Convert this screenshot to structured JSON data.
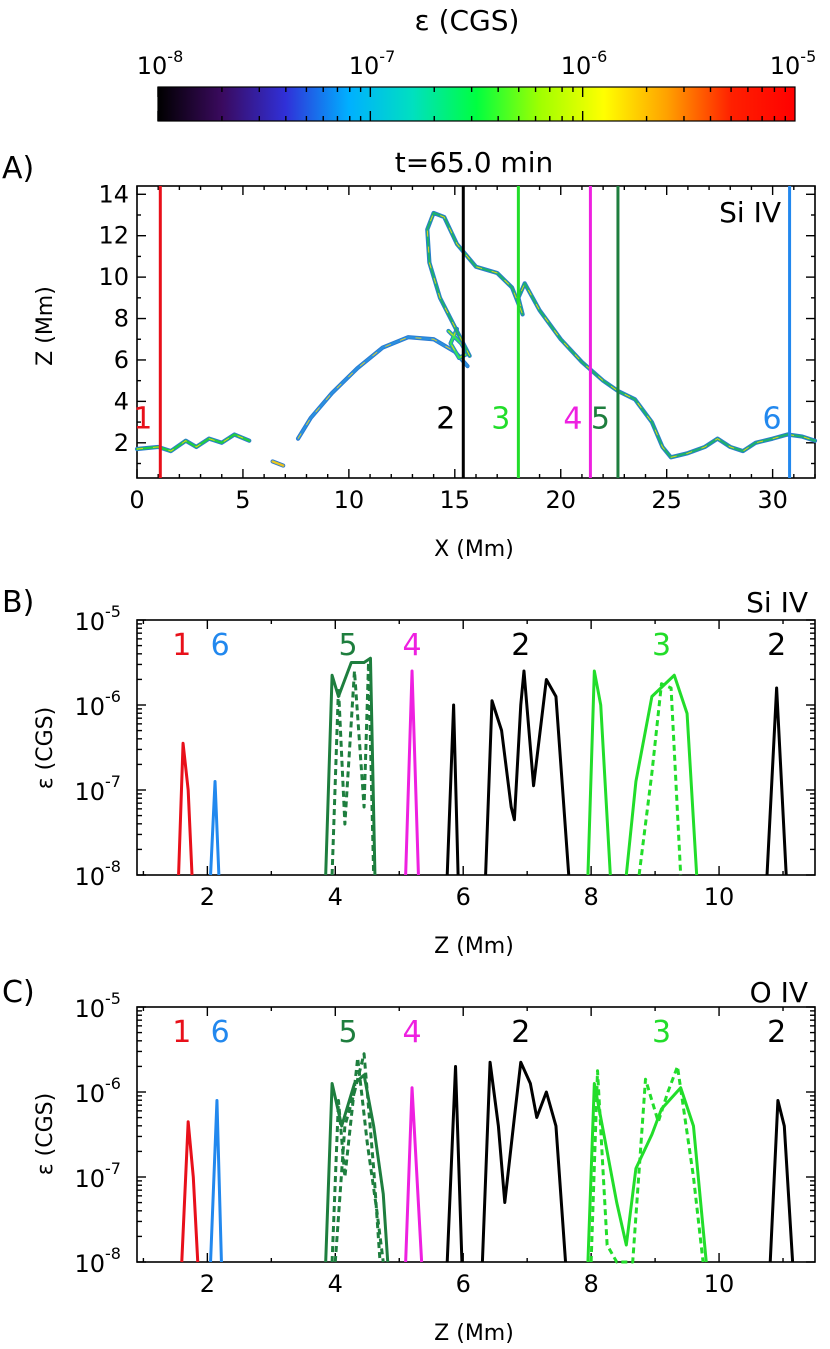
{
  "colorbar": {
    "title": "ε (CGS)",
    "ticks": [
      "10",
      "10",
      "10",
      "10"
    ],
    "exponents": [
      "-8",
      "-7",
      "-6",
      "-5"
    ],
    "log_range": [
      -8,
      -5
    ],
    "stops": [
      "#000000",
      "#3a0a5e",
      "#3030d8",
      "#00b0ff",
      "#00e0c0",
      "#00ff40",
      "#a0ff00",
      "#ffff00",
      "#ffa000",
      "#ff2000",
      "#ff0000"
    ]
  },
  "chart_data": [
    {
      "id": "A",
      "type": "line",
      "panel_label": "A)",
      "title": "t=65.0 min",
      "line_name": "Si IV",
      "xlabel": "X (Mm)",
      "ylabel": "Z (Mm)",
      "xlim": [
        0,
        32
      ],
      "ylim": [
        0.3,
        14.4
      ],
      "xticks": [
        0,
        5,
        10,
        15,
        20,
        25,
        30
      ],
      "xticklabels": [
        "0",
        "5",
        "10",
        "15",
        "20",
        "25",
        "30"
      ],
      "yticks": [
        2,
        4,
        6,
        8,
        10,
        12,
        14
      ],
      "yticklabels": [
        "2",
        "4",
        "6",
        "8",
        "10",
        "12",
        "14"
      ],
      "slits": [
        {
          "id": "1",
          "x": 1.1,
          "color": "#e8101a"
        },
        {
          "id": "2",
          "x": 15.4,
          "color": "#000000"
        },
        {
          "id": "3",
          "x": 18.0,
          "color": "#22dd2a"
        },
        {
          "id": "4",
          "x": 21.4,
          "color": "#ee20e0"
        },
        {
          "id": "5",
          "x": 22.7,
          "color": "#1e7e3e"
        },
        {
          "id": "6",
          "x": 30.8,
          "color": "#2288ee"
        }
      ],
      "structure": [
        [
          [
            0,
            1.7
          ],
          [
            1,
            1.8
          ],
          [
            1.6,
            1.6
          ],
          [
            2.3,
            2.1
          ],
          [
            2.8,
            1.8
          ],
          [
            3.4,
            2.2
          ],
          [
            4.0,
            2.0
          ],
          [
            4.6,
            2.4
          ],
          [
            5.3,
            2.1
          ]
        ],
        [
          [
            6.4,
            1.1
          ],
          [
            6.9,
            0.9
          ]
        ],
        [
          [
            7.6,
            2.2
          ],
          [
            8.2,
            3.2
          ],
          [
            9.2,
            4.4
          ],
          [
            10.4,
            5.6
          ],
          [
            11.6,
            6.6
          ],
          [
            12.8,
            7.1
          ],
          [
            14.0,
            7.0
          ],
          [
            15.0,
            6.4
          ],
          [
            15.6,
            5.7
          ]
        ],
        [
          [
            14.7,
            7.4
          ],
          [
            15.3,
            6.8
          ],
          [
            15.6,
            6.3
          ],
          [
            15.2,
            6.1
          ],
          [
            14.8,
            6.8
          ],
          [
            15.1,
            7.5
          ]
        ],
        [
          [
            15.7,
            6.2
          ],
          [
            14.9,
            7.8
          ],
          [
            14.3,
            9.0
          ],
          [
            13.8,
            10.7
          ],
          [
            13.7,
            12.3
          ],
          [
            14.0,
            13.1
          ],
          [
            14.5,
            12.9
          ],
          [
            15.1,
            11.6
          ],
          [
            16.0,
            10.5
          ],
          [
            17.0,
            10.2
          ],
          [
            17.7,
            9.5
          ],
          [
            18.2,
            8.2
          ],
          [
            18.0,
            9.0
          ],
          [
            18.3,
            9.7
          ],
          [
            19.0,
            8.4
          ],
          [
            20.0,
            7.0
          ],
          [
            21.0,
            5.9
          ],
          [
            22.0,
            5.0
          ],
          [
            22.7,
            4.5
          ],
          [
            23.5,
            4.1
          ],
          [
            24.3,
            3.0
          ],
          [
            24.8,
            1.8
          ],
          [
            25.2,
            1.3
          ],
          [
            26.0,
            1.5
          ],
          [
            26.8,
            1.8
          ],
          [
            27.4,
            2.2
          ],
          [
            28.0,
            1.8
          ],
          [
            28.6,
            1.6
          ],
          [
            29.2,
            2.0
          ],
          [
            30.0,
            2.2
          ],
          [
            30.7,
            2.4
          ],
          [
            31.4,
            2.3
          ],
          [
            32.0,
            2.1
          ]
        ]
      ]
    },
    {
      "id": "B",
      "type": "line",
      "panel_label": "B)",
      "line_name": "Si IV",
      "xlabel": "Z (Mm)",
      "ylabel": "ε (CGS)",
      "xlim": [
        0.9,
        11.5
      ],
      "ylog": true,
      "ylim_exponent": [
        -8,
        -5
      ],
      "xticks": [
        2,
        4,
        6,
        8,
        10
      ],
      "xticklabels": [
        "2",
        "4",
        "6",
        "8",
        "10"
      ],
      "yticks": [
        "10",
        "10",
        "10",
        "10"
      ],
      "yticks_exponent": [
        "-8",
        "-7",
        "-6",
        "-5"
      ],
      "annotations": [
        {
          "text": "1",
          "x": 1.6,
          "color": "#e8101a"
        },
        {
          "text": "6",
          "x": 2.2,
          "color": "#2288ee"
        },
        {
          "text": "5",
          "x": 4.2,
          "color": "#1e7e3e"
        },
        {
          "text": "4",
          "x": 5.2,
          "color": "#ee20e0"
        },
        {
          "text": "2",
          "x": 6.9,
          "color": "#000000"
        },
        {
          "text": "3",
          "x": 9.1,
          "color": "#22dd2a"
        },
        {
          "text": "2",
          "x": 10.9,
          "color": "#000000"
        }
      ],
      "series": [
        {
          "name": "1",
          "color": "#e8101a",
          "dash": false,
          "points": [
            [
              1.55,
              -8
            ],
            [
              1.62,
              -6.45
            ],
            [
              1.7,
              -7.0
            ],
            [
              1.76,
              -8
            ]
          ]
        },
        {
          "name": "6",
          "color": "#2288ee",
          "dash": false,
          "points": [
            [
              2.05,
              -8
            ],
            [
              2.12,
              -6.9
            ],
            [
              2.18,
              -8
            ]
          ]
        },
        {
          "name": "5 (solid)",
          "color": "#1e7e3e",
          "dash": false,
          "points": [
            [
              3.85,
              -8
            ],
            [
              3.95,
              -5.65
            ],
            [
              4.05,
              -5.9
            ],
            [
              4.25,
              -5.5
            ],
            [
              4.45,
              -5.5
            ],
            [
              4.55,
              -5.45
            ],
            [
              4.62,
              -8
            ]
          ]
        },
        {
          "name": "5 (dashed)",
          "color": "#1e7e3e",
          "dash": true,
          "points": [
            [
              3.95,
              -8
            ],
            [
              4.05,
              -5.8
            ],
            [
              4.15,
              -7.4
            ],
            [
              4.3,
              -5.6
            ],
            [
              4.45,
              -7.2
            ],
            [
              4.52,
              -5.5
            ],
            [
              4.6,
              -8
            ]
          ]
        },
        {
          "name": "4",
          "color": "#ee20e0",
          "dash": false,
          "points": [
            [
              5.1,
              -8
            ],
            [
              5.2,
              -5.6
            ],
            [
              5.3,
              -8
            ]
          ]
        },
        {
          "name": "2 (first)",
          "color": "#000000",
          "dash": false,
          "points": [
            [
              5.75,
              -8
            ],
            [
              5.85,
              -6.0
            ],
            [
              5.92,
              -8
            ]
          ]
        },
        {
          "name": "2 (main)",
          "color": "#000000",
          "dash": false,
          "points": [
            [
              6.35,
              -8
            ],
            [
              6.45,
              -5.95
            ],
            [
              6.6,
              -6.3
            ],
            [
              6.75,
              -7.2
            ],
            [
              6.8,
              -7.35
            ],
            [
              6.9,
              -6.0
            ],
            [
              6.95,
              -5.6
            ],
            [
              7.1,
              -6.95
            ],
            [
              7.3,
              -5.7
            ],
            [
              7.45,
              -5.9
            ],
            [
              7.65,
              -8
            ]
          ]
        },
        {
          "name": "3 (first)",
          "color": "#22dd2a",
          "dash": false,
          "points": [
            [
              7.95,
              -8
            ],
            [
              8.05,
              -5.6
            ],
            [
              8.15,
              -6.0
            ],
            [
              8.3,
              -8
            ]
          ]
        },
        {
          "name": "3 (main)",
          "color": "#22dd2a",
          "dash": false,
          "points": [
            [
              8.55,
              -8
            ],
            [
              8.7,
              -6.9
            ],
            [
              8.95,
              -5.9
            ],
            [
              9.3,
              -5.65
            ],
            [
              9.5,
              -6.1
            ],
            [
              9.65,
              -8
            ]
          ]
        },
        {
          "name": "3 (dashed)",
          "color": "#22dd2a",
          "dash": true,
          "points": [
            [
              8.75,
              -8
            ],
            [
              8.95,
              -6.8
            ],
            [
              9.1,
              -5.75
            ],
            [
              9.25,
              -5.8
            ],
            [
              9.4,
              -8
            ]
          ]
        },
        {
          "name": "2 (last)",
          "color": "#000000",
          "dash": false,
          "points": [
            [
              10.75,
              -8
            ],
            [
              10.9,
              -5.8
            ],
            [
              11.05,
              -8
            ]
          ]
        }
      ]
    },
    {
      "id": "C",
      "type": "line",
      "panel_label": "C)",
      "line_name": "O IV",
      "xlabel": "Z (Mm)",
      "ylabel": "ε (CGS)",
      "xlim": [
        0.9,
        11.5
      ],
      "ylog": true,
      "ylim_exponent": [
        -8,
        -5
      ],
      "xticks": [
        2,
        4,
        6,
        8,
        10
      ],
      "xticklabels": [
        "2",
        "4",
        "6",
        "8",
        "10"
      ],
      "yticks": [
        "10",
        "10",
        "10",
        "10"
      ],
      "yticks_exponent": [
        "-8",
        "-7",
        "-6",
        "-5"
      ],
      "annotations": [
        {
          "text": "1",
          "x": 1.6,
          "color": "#e8101a"
        },
        {
          "text": "6",
          "x": 2.2,
          "color": "#2288ee"
        },
        {
          "text": "5",
          "x": 4.2,
          "color": "#1e7e3e"
        },
        {
          "text": "4",
          "x": 5.2,
          "color": "#ee20e0"
        },
        {
          "text": "2",
          "x": 6.9,
          "color": "#000000"
        },
        {
          "text": "3",
          "x": 9.1,
          "color": "#22dd2a"
        },
        {
          "text": "2",
          "x": 10.9,
          "color": "#000000"
        }
      ],
      "series": [
        {
          "name": "1",
          "color": "#e8101a",
          "dash": false,
          "points": [
            [
              1.6,
              -8
            ],
            [
              1.7,
              -6.35
            ],
            [
              1.78,
              -7.0
            ],
            [
              1.85,
              -8
            ]
          ]
        },
        {
          "name": "6",
          "color": "#2288ee",
          "dash": false,
          "points": [
            [
              2.05,
              -8
            ],
            [
              2.15,
              -6.1
            ],
            [
              2.22,
              -8
            ]
          ]
        },
        {
          "name": "5 (solid)",
          "color": "#1e7e3e",
          "dash": false,
          "points": [
            [
              3.85,
              -8
            ],
            [
              3.95,
              -5.9
            ],
            [
              4.1,
              -6.4
            ],
            [
              4.3,
              -5.9
            ],
            [
              4.45,
              -5.8
            ],
            [
              4.6,
              -6.4
            ],
            [
              4.75,
              -7.2
            ],
            [
              4.82,
              -8
            ]
          ]
        },
        {
          "name": "5 (dashed a)",
          "color": "#1e7e3e",
          "dash": true,
          "points": [
            [
              3.95,
              -8
            ],
            [
              4.05,
              -6.1
            ],
            [
              4.15,
              -7.0
            ],
            [
              4.35,
              -5.6
            ],
            [
              4.5,
              -6.6
            ],
            [
              4.65,
              -7.4
            ],
            [
              4.75,
              -8
            ]
          ]
        },
        {
          "name": "5 (dashed b)",
          "color": "#1e7e3e",
          "dash": true,
          "points": [
            [
              4.0,
              -8
            ],
            [
              4.15,
              -6.4
            ],
            [
              4.3,
              -6.0
            ],
            [
              4.45,
              -5.55
            ],
            [
              4.6,
              -6.9
            ],
            [
              4.7,
              -8
            ]
          ]
        },
        {
          "name": "4",
          "color": "#ee20e0",
          "dash": false,
          "points": [
            [
              5.1,
              -8
            ],
            [
              5.2,
              -5.95
            ],
            [
              5.35,
              -8
            ]
          ]
        },
        {
          "name": "2 (first)",
          "color": "#000000",
          "dash": false,
          "points": [
            [
              5.75,
              -8
            ],
            [
              5.88,
              -5.7
            ],
            [
              5.98,
              -8
            ]
          ]
        },
        {
          "name": "2 (main)",
          "color": "#000000",
          "dash": false,
          "points": [
            [
              6.3,
              -8
            ],
            [
              6.42,
              -5.65
            ],
            [
              6.55,
              -6.4
            ],
            [
              6.65,
              -7.3
            ],
            [
              6.8,
              -6.3
            ],
            [
              6.9,
              -5.65
            ],
            [
              7.05,
              -5.9
            ],
            [
              7.15,
              -6.3
            ],
            [
              7.3,
              -6.0
            ],
            [
              7.45,
              -6.4
            ],
            [
              7.6,
              -8
            ]
          ]
        },
        {
          "name": "3 (first)",
          "color": "#22dd2a",
          "dash": false,
          "points": [
            [
              7.95,
              -8
            ],
            [
              8.05,
              -5.9
            ],
            [
              8.2,
              -6.5
            ],
            [
              8.4,
              -7.3
            ],
            [
              8.55,
              -7.8
            ],
            [
              8.7,
              -6.9
            ],
            [
              8.95,
              -6.5
            ],
            [
              9.1,
              -6.2
            ],
            [
              9.4,
              -5.95
            ],
            [
              9.6,
              -6.4
            ],
            [
              9.8,
              -8
            ]
          ]
        },
        {
          "name": "3 (dashed)",
          "color": "#22dd2a",
          "dash": true,
          "points": [
            [
              8.0,
              -8
            ],
            [
              8.1,
              -5.75
            ],
            [
              8.25,
              -7.8
            ],
            [
              8.4,
              -8
            ],
            [
              8.65,
              -8
            ],
            [
              8.85,
              -5.85
            ],
            [
              9.05,
              -6.35
            ],
            [
              9.2,
              -6.0
            ],
            [
              9.35,
              -5.7
            ],
            [
              9.6,
              -7.0
            ],
            [
              9.75,
              -8
            ]
          ]
        },
        {
          "name": "2 (last)",
          "color": "#000000",
          "dash": false,
          "points": [
            [
              10.8,
              -8
            ],
            [
              10.92,
              -6.1
            ],
            [
              11.02,
              -6.4
            ],
            [
              11.15,
              -8
            ]
          ]
        }
      ]
    }
  ]
}
